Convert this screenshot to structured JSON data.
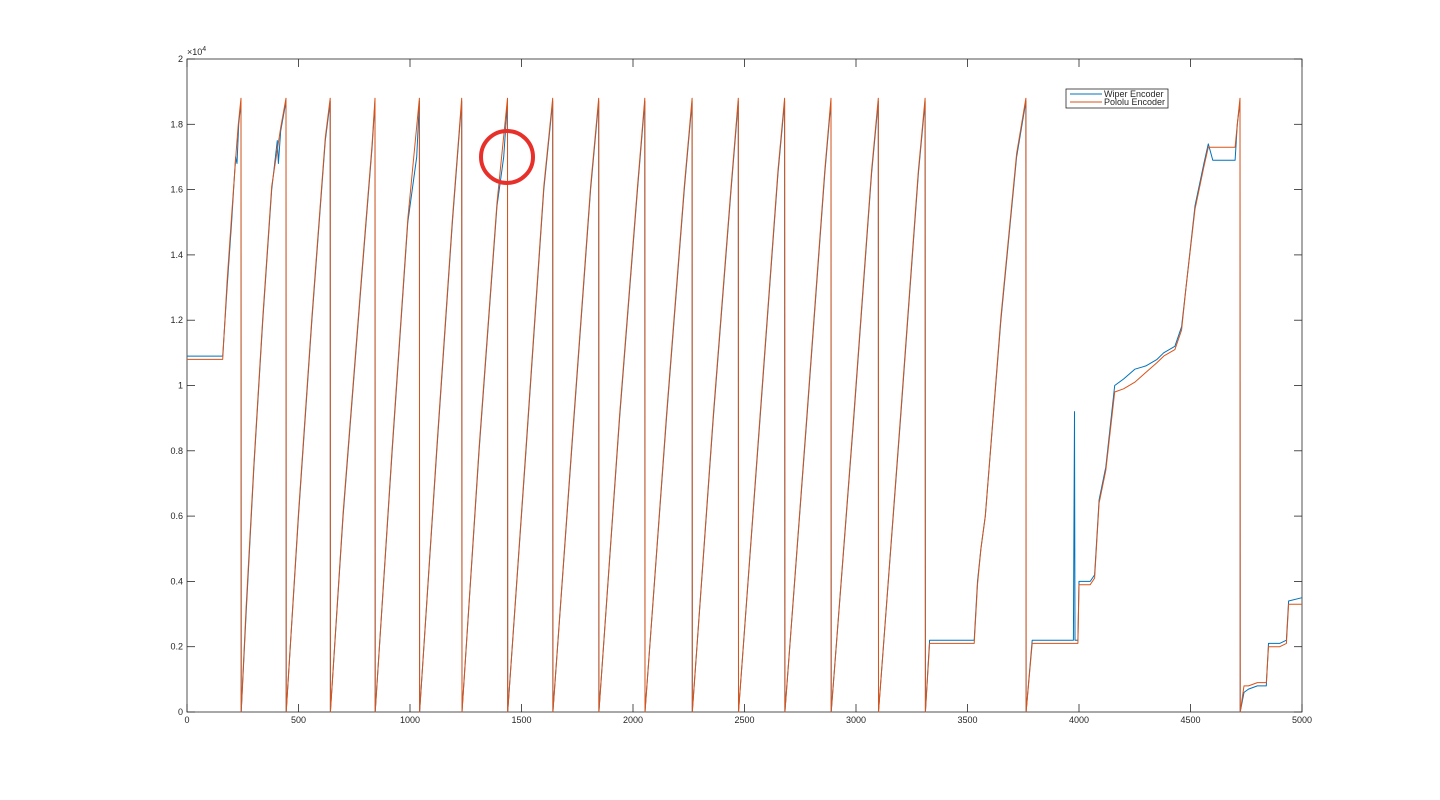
{
  "chart_data": {
    "type": "line",
    "title": "",
    "xlabel": "",
    "ylabel": "",
    "xlim": [
      0,
      5000
    ],
    "ylim": [
      0,
      20000
    ],
    "x_ticks": [
      0,
      500,
      1000,
      1500,
      2000,
      2500,
      3000,
      3500,
      4000,
      4500,
      5000
    ],
    "x_tick_labels": [
      "0",
      "500",
      "1000",
      "1500",
      "2000",
      "2500",
      "3000",
      "3500",
      "4000",
      "4500",
      "5000"
    ],
    "y_ticks": [
      0,
      2000,
      4000,
      6000,
      8000,
      10000,
      12000,
      14000,
      16000,
      18000,
      20000
    ],
    "y_tick_labels": [
      "0",
      "0.2",
      "0.4",
      "0.6",
      "0.8",
      "1",
      "1.2",
      "1.4",
      "1.6",
      "1.8",
      "2"
    ],
    "y_exponent_label": "×10",
    "y_exponent_power": "4",
    "grid": false,
    "legend_position": "top-right",
    "series": [
      {
        "name": "Wiper Encoder",
        "color": "#0072BD",
        "points": [
          [
            0,
            10900
          ],
          [
            160,
            10900
          ],
          [
            180,
            13000
          ],
          [
            200,
            15000
          ],
          [
            218,
            17000
          ],
          [
            224,
            16800
          ],
          [
            232,
            18000
          ],
          [
            242,
            18700
          ],
          [
            243,
            0
          ],
          [
            265,
            3000
          ],
          [
            300,
            7500
          ],
          [
            340,
            12000
          ],
          [
            380,
            16000
          ],
          [
            405,
            17500
          ],
          [
            410,
            16800
          ],
          [
            420,
            17800
          ],
          [
            444,
            18700
          ],
          [
            445,
            0
          ],
          [
            500,
            6000
          ],
          [
            560,
            12000
          ],
          [
            620,
            17500
          ],
          [
            642,
            18700
          ],
          [
            643,
            0
          ],
          [
            700,
            6000
          ],
          [
            780,
            13000
          ],
          [
            830,
            17300
          ],
          [
            843,
            18700
          ],
          [
            844,
            0
          ],
          [
            920,
            8000
          ],
          [
            990,
            15000
          ],
          [
            1030,
            17000
          ],
          [
            1042,
            18700
          ],
          [
            1043,
            0
          ],
          [
            1120,
            8000
          ],
          [
            1190,
            15000
          ],
          [
            1232,
            18700
          ],
          [
            1233,
            0
          ],
          [
            1310,
            8000
          ],
          [
            1390,
            15500
          ],
          [
            1420,
            17000
          ],
          [
            1437,
            18700
          ],
          [
            1438,
            0
          ],
          [
            1520,
            8000
          ],
          [
            1600,
            16000
          ],
          [
            1640,
            18700
          ],
          [
            1641,
            0
          ],
          [
            1730,
            8500
          ],
          [
            1810,
            16000
          ],
          [
            1846,
            18700
          ],
          [
            1847,
            0
          ],
          [
            1940,
            9000
          ],
          [
            2020,
            16000
          ],
          [
            2053,
            18700
          ],
          [
            2054,
            0
          ],
          [
            2150,
            9000
          ],
          [
            2230,
            16000
          ],
          [
            2265,
            18700
          ],
          [
            2266,
            0
          ],
          [
            2360,
            9000
          ],
          [
            2440,
            16000
          ],
          [
            2472,
            18700
          ],
          [
            2473,
            0
          ],
          [
            2570,
            9000
          ],
          [
            2650,
            16500
          ],
          [
            2680,
            18700
          ],
          [
            2681,
            0
          ],
          [
            2780,
            9000
          ],
          [
            2860,
            16500
          ],
          [
            2888,
            18700
          ],
          [
            2889,
            0
          ],
          [
            2990,
            9000
          ],
          [
            3070,
            16500
          ],
          [
            3100,
            18700
          ],
          [
            3101,
            0
          ],
          [
            3200,
            9000
          ],
          [
            3280,
            16500
          ],
          [
            3310,
            18700
          ],
          [
            3311,
            0
          ],
          [
            3330,
            2200
          ],
          [
            3530,
            2200
          ],
          [
            3545,
            4000
          ],
          [
            3560,
            5000
          ],
          [
            3580,
            6000
          ],
          [
            3650,
            12000
          ],
          [
            3720,
            17000
          ],
          [
            3762,
            18700
          ],
          [
            3763,
            0
          ],
          [
            3790,
            2200
          ],
          [
            3975,
            2200
          ],
          [
            3980,
            9200
          ],
          [
            3982,
            2200
          ],
          [
            3995,
            2200
          ],
          [
            4000,
            4000
          ],
          [
            4050,
            4000
          ],
          [
            4070,
            4200
          ],
          [
            4090,
            6500
          ],
          [
            4120,
            7500
          ],
          [
            4160,
            10000
          ],
          [
            4200,
            10200
          ],
          [
            4250,
            10500
          ],
          [
            4300,
            10600
          ],
          [
            4350,
            10800
          ],
          [
            4380,
            11000
          ],
          [
            4430,
            11200
          ],
          [
            4460,
            11800
          ],
          [
            4480,
            13000
          ],
          [
            4520,
            15500
          ],
          [
            4560,
            16800
          ],
          [
            4580,
            17400
          ],
          [
            4600,
            16900
          ],
          [
            4700,
            16900
          ],
          [
            4710,
            18000
          ],
          [
            4722,
            18700
          ],
          [
            4723,
            0
          ],
          [
            4740,
            600
          ],
          [
            4760,
            700
          ],
          [
            4800,
            800
          ],
          [
            4820,
            800
          ],
          [
            4840,
            800
          ],
          [
            4850,
            2100
          ],
          [
            4900,
            2100
          ],
          [
            4930,
            2200
          ],
          [
            4940,
            3400
          ],
          [
            5000,
            3500
          ]
        ]
      },
      {
        "name": "Pololu Encoder",
        "color": "#D95319",
        "points": [
          [
            0,
            10800
          ],
          [
            160,
            10800
          ],
          [
            180,
            13200
          ],
          [
            200,
            15200
          ],
          [
            222,
            17300
          ],
          [
            230,
            18000
          ],
          [
            242,
            18800
          ],
          [
            243,
            0
          ],
          [
            265,
            3200
          ],
          [
            300,
            7600
          ],
          [
            340,
            12100
          ],
          [
            380,
            16100
          ],
          [
            420,
            17900
          ],
          [
            444,
            18800
          ],
          [
            445,
            0
          ],
          [
            500,
            6100
          ],
          [
            560,
            12100
          ],
          [
            620,
            17600
          ],
          [
            642,
            18800
          ],
          [
            643,
            0
          ],
          [
            700,
            6100
          ],
          [
            780,
            13100
          ],
          [
            830,
            17400
          ],
          [
            843,
            18800
          ],
          [
            844,
            0
          ],
          [
            920,
            8100
          ],
          [
            990,
            15100
          ],
          [
            1042,
            18800
          ],
          [
            1043,
            0
          ],
          [
            1120,
            8100
          ],
          [
            1190,
            15100
          ],
          [
            1232,
            18800
          ],
          [
            1233,
            0
          ],
          [
            1310,
            8100
          ],
          [
            1390,
            15600
          ],
          [
            1437,
            18800
          ],
          [
            1438,
            0
          ],
          [
            1520,
            8100
          ],
          [
            1600,
            16100
          ],
          [
            1640,
            18800
          ],
          [
            1641,
            0
          ],
          [
            1730,
            8600
          ],
          [
            1810,
            16100
          ],
          [
            1846,
            18800
          ],
          [
            1847,
            0
          ],
          [
            1940,
            9100
          ],
          [
            2020,
            16100
          ],
          [
            2053,
            18800
          ],
          [
            2054,
            0
          ],
          [
            2150,
            9100
          ],
          [
            2230,
            16100
          ],
          [
            2265,
            18800
          ],
          [
            2266,
            0
          ],
          [
            2360,
            9100
          ],
          [
            2440,
            16100
          ],
          [
            2472,
            18800
          ],
          [
            2473,
            0
          ],
          [
            2570,
            9100
          ],
          [
            2650,
            16600
          ],
          [
            2680,
            18800
          ],
          [
            2681,
            0
          ],
          [
            2780,
            9100
          ],
          [
            2860,
            16600
          ],
          [
            2888,
            18800
          ],
          [
            2889,
            0
          ],
          [
            2990,
            9100
          ],
          [
            3070,
            16600
          ],
          [
            3100,
            18800
          ],
          [
            3101,
            0
          ],
          [
            3200,
            9100
          ],
          [
            3280,
            16600
          ],
          [
            3310,
            18800
          ],
          [
            3311,
            0
          ],
          [
            3330,
            2100
          ],
          [
            3530,
            2100
          ],
          [
            3545,
            3900
          ],
          [
            3560,
            5000
          ],
          [
            3580,
            6000
          ],
          [
            3650,
            12100
          ],
          [
            3720,
            17100
          ],
          [
            3762,
            18800
          ],
          [
            3763,
            0
          ],
          [
            3790,
            2100
          ],
          [
            3995,
            2100
          ],
          [
            4000,
            3900
          ],
          [
            4050,
            3900
          ],
          [
            4070,
            4100
          ],
          [
            4090,
            6400
          ],
          [
            4120,
            7400
          ],
          [
            4160,
            9800
          ],
          [
            4200,
            9900
          ],
          [
            4250,
            10100
          ],
          [
            4300,
            10400
          ],
          [
            4350,
            10700
          ],
          [
            4380,
            10900
          ],
          [
            4430,
            11100
          ],
          [
            4460,
            11700
          ],
          [
            4480,
            13000
          ],
          [
            4520,
            15400
          ],
          [
            4560,
            16700
          ],
          [
            4580,
            17300
          ],
          [
            4700,
            17300
          ],
          [
            4710,
            18000
          ],
          [
            4722,
            18800
          ],
          [
            4723,
            0
          ],
          [
            4740,
            800
          ],
          [
            4760,
            800
          ],
          [
            4800,
            900
          ],
          [
            4840,
            900
          ],
          [
            4850,
            2000
          ],
          [
            4900,
            2000
          ],
          [
            4930,
            2100
          ],
          [
            4940,
            3300
          ],
          [
            5000,
            3300
          ]
        ]
      }
    ],
    "annotation": {
      "shape": "circle",
      "color": "#E8302A",
      "x": 1435,
      "y": 17000
    }
  }
}
